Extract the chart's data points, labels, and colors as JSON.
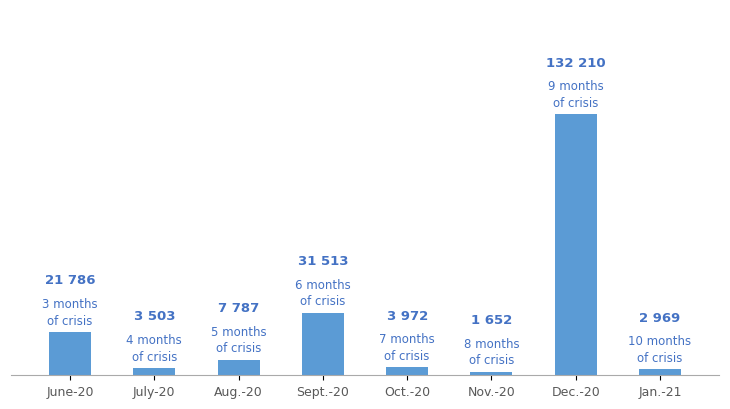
{
  "categories": [
    "June-20",
    "July-20",
    "Aug.-20",
    "Sept.-20",
    "Oct.-20",
    "Nov.-20",
    "Dec.-20",
    "Jan.-21"
  ],
  "values": [
    21786,
    3503,
    7787,
    31513,
    3972,
    1652,
    132210,
    2969
  ],
  "labels_value": [
    "21 786",
    "3 503",
    "7 787",
    "31 513",
    "3 972",
    "1 652",
    "132 210",
    "2 969"
  ],
  "labels_sub": [
    "3 months\nof crisis",
    "4 months\nof crisis",
    "5 months\nof crisis",
    "6 months\nof crisis",
    "7 months\nof crisis",
    "8 months\nof crisis",
    "9 months\nof crisis",
    "10 months\nof crisis"
  ],
  "bar_color": "#5b9bd5",
  "label_color": "#4472c4",
  "background_color": "#ffffff",
  "bar_width": 0.5,
  "ylim": [
    0,
    185000
  ],
  "figsize": [
    7.3,
    4.1
  ],
  "dpi": 100,
  "xlabel_color": "#595959",
  "value_fontsize": 9.5,
  "sub_fontsize": 8.5
}
